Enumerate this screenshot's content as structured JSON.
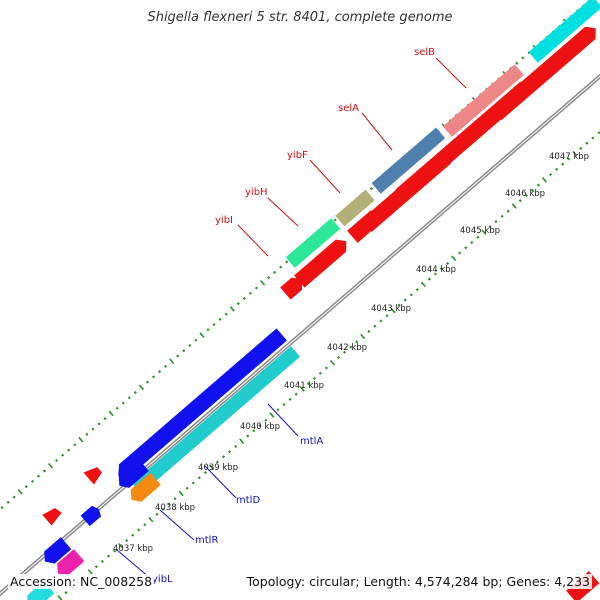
{
  "title": "Shigella flexneri 5 str. 8401, complete genome",
  "footer": {
    "accession": "Accession: NC_008258",
    "summary": "Topology: circular; Length: 4,574,284 bp; Genes: 4,233"
  },
  "colors": {
    "backbone": "#8a8a8a",
    "tick_major": "#2e8b2e",
    "tick_minor": "#2e8b2e",
    "forward_label": "#cc1111",
    "reverse_label": "#1111cc",
    "cds_red": "#ee1111",
    "cds_blue": "#1111ee"
  },
  "scale_ticks": [
    "4037 kbp",
    "4038 kbp",
    "4039 kbp",
    "4040 kbp",
    "4041 kbp",
    "4042 kbp",
    "4043 kbp",
    "4044 kbp",
    "4045 kbp",
    "4046 kbp",
    "4047 kbp"
  ],
  "gene_labels": [
    {
      "name": "selB",
      "strand": "forward"
    },
    {
      "name": "selA",
      "strand": "forward"
    },
    {
      "name": "yibF",
      "strand": "forward"
    },
    {
      "name": "yibH",
      "strand": "forward"
    },
    {
      "name": "yibI",
      "strand": "forward"
    },
    {
      "name": "mtlA",
      "strand": "reverse"
    },
    {
      "name": "mtlD",
      "strand": "reverse"
    },
    {
      "name": "mtlR",
      "strand": "reverse"
    },
    {
      "name": "yibL",
      "strand": "reverse"
    }
  ]
}
